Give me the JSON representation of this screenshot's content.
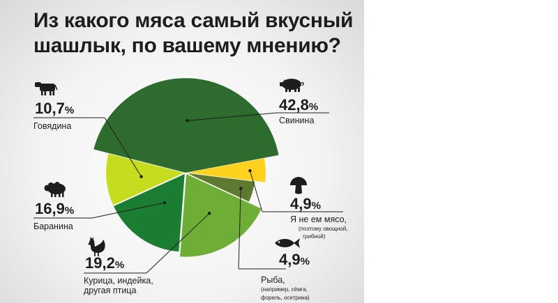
{
  "chart_data": {
    "type": "pie",
    "title": "Из какого мяса самый вкусный шашлык, по вашему мнению?",
    "unit": "%",
    "slices": [
      {
        "label": "Свинина",
        "value": 42.8,
        "value_text": "42,8",
        "color": "#2e6b2e",
        "icon": "pig-icon"
      },
      {
        "label": "Я не ем мясо,",
        "note": [
          "(поэтому овощной,",
          "грибной)"
        ],
        "value": 4.9,
        "value_text": "4,9",
        "color": "#ffd21f",
        "icon": "mushroom-icon"
      },
      {
        "label": "Рыба,",
        "note": [
          "(например, сёмга,",
          "форель, осетрина)"
        ],
        "value": 4.9,
        "value_text": "4,9",
        "color": "#5e7a30",
        "icon": "fish-icon"
      },
      {
        "label": "Курица, индейка,",
        "label2": "другая птица",
        "value": 19.2,
        "value_text": "19,2",
        "color": "#6fae36",
        "icon": "rooster-icon"
      },
      {
        "label": "Баранина",
        "value": 16.9,
        "value_text": "16,9",
        "color": "#1b7d32",
        "icon": "sheep-icon"
      },
      {
        "label": "Говядина",
        "value": 10.7,
        "value_text": "10,7",
        "color": "#c6dc1e",
        "icon": "cow-icon"
      }
    ]
  }
}
